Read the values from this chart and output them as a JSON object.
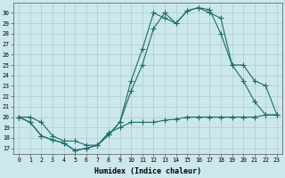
{
  "xlabel": "Humidex (Indice chaleur)",
  "bg_color": "#cce8ec",
  "grid_color": "#aacccc",
  "line_color": "#1a6b6b",
  "xlim": [
    -0.5,
    23.5
  ],
  "ylim": [
    16.5,
    31.0
  ],
  "yticks": [
    17,
    18,
    19,
    20,
    21,
    22,
    23,
    24,
    25,
    26,
    27,
    28,
    29,
    30
  ],
  "xticks": [
    0,
    1,
    2,
    3,
    4,
    5,
    6,
    7,
    8,
    9,
    10,
    11,
    12,
    13,
    14,
    15,
    16,
    17,
    18,
    19,
    20,
    21,
    22,
    23
  ],
  "line1_x": [
    0,
    1,
    2,
    3,
    4,
    5,
    6,
    7,
    8,
    9,
    10,
    11,
    12,
    13,
    14,
    15,
    16,
    17,
    18,
    19,
    20,
    21,
    22,
    23
  ],
  "line1_y": [
    20.0,
    20.0,
    19.5,
    18.2,
    17.7,
    17.7,
    17.3,
    17.3,
    18.5,
    19.0,
    19.5,
    19.5,
    19.5,
    19.7,
    19.8,
    20.0,
    20.0,
    20.0,
    20.0,
    20.0,
    20.0,
    20.0,
    20.2,
    20.2
  ],
  "line2_x": [
    0,
    1,
    2,
    3,
    4,
    5,
    6,
    7,
    8,
    9,
    10,
    11,
    12,
    13,
    14,
    15,
    16,
    17,
    18,
    19,
    20,
    21,
    22,
    23
  ],
  "line2_y": [
    20.0,
    19.5,
    18.2,
    17.8,
    17.5,
    16.8,
    17.0,
    17.3,
    18.3,
    19.5,
    23.5,
    26.5,
    30.0,
    29.5,
    29.0,
    30.2,
    30.5,
    30.0,
    29.5,
    25.0,
    25.0,
    23.5,
    23.0,
    20.2
  ],
  "line3_x": [
    0,
    1,
    2,
    3,
    4,
    5,
    6,
    7,
    8,
    9,
    10,
    11,
    12,
    13,
    14,
    15,
    16,
    17,
    18,
    19,
    20,
    21,
    22,
    23
  ],
  "line3_y": [
    20.0,
    19.5,
    18.2,
    17.8,
    17.5,
    16.8,
    17.0,
    17.3,
    18.3,
    19.5,
    22.5,
    25.0,
    28.5,
    30.0,
    29.0,
    30.2,
    30.5,
    30.3,
    28.0,
    25.0,
    23.5,
    21.5,
    20.2,
    20.2
  ]
}
